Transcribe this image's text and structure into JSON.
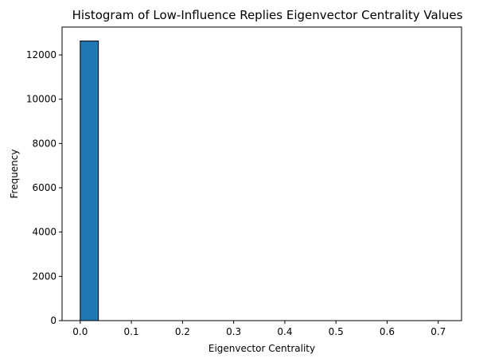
{
  "chart_data": {
    "type": "bar",
    "title": "Histogram of Low-Influence Replies Eigenvector Centrality Values",
    "xlabel": "Eigenvector Centrality",
    "ylabel": "Frequency",
    "xlim": [
      -0.0355,
      0.7455
    ],
    "ylim": [
      0,
      13260
    ],
    "xticks": [
      "0.0",
      "0.1",
      "0.2",
      "0.3",
      "0.4",
      "0.5",
      "0.6",
      "0.7"
    ],
    "xtick_values": [
      0.0,
      0.1,
      0.2,
      0.3,
      0.4,
      0.5,
      0.6,
      0.7
    ],
    "yticks": [
      "0",
      "2000",
      "4000",
      "6000",
      "8000",
      "10000",
      "12000"
    ],
    "ytick_values": [
      0,
      2000,
      4000,
      6000,
      8000,
      10000,
      12000
    ],
    "bin_edges": [
      0.0,
      0.0355,
      0.071,
      0.1065,
      0.142,
      0.1775,
      0.213,
      0.2485,
      0.284,
      0.3195,
      0.355,
      0.3905,
      0.426,
      0.4615,
      0.497,
      0.5325,
      0.568,
      0.6035,
      0.639,
      0.6745,
      0.71
    ],
    "values": [
      12630,
      0,
      0,
      0,
      0,
      0,
      0,
      0,
      0,
      0,
      0,
      0,
      0,
      0,
      0,
      0,
      0,
      0,
      0,
      1
    ],
    "bar_color": "#1f77b4",
    "edge_color": "#000000",
    "grid": false
  }
}
